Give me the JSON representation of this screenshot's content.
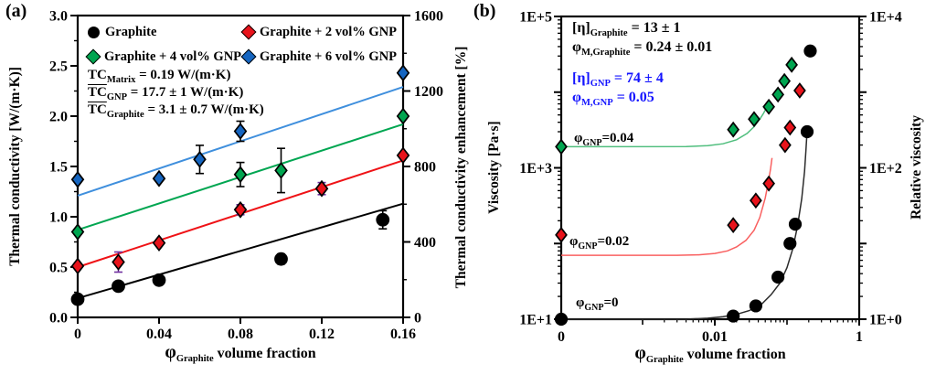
{
  "page": {
    "panel_a_label": "(a)",
    "panel_b_label": "(b)"
  },
  "chart_data": [
    {
      "type": "scatter",
      "panel": "a",
      "axes": {
        "x": {
          "label_phi": "φ",
          "label_sub": "Graphite",
          "label_rest": " volume fraction",
          "min": 0,
          "max": 0.16,
          "ticks": [
            {
              "v": 0,
              "t": "0"
            },
            {
              "v": 0.04,
              "t": "0.04"
            },
            {
              "v": 0.08,
              "t": "0.08"
            },
            {
              "v": 0.12,
              "t": "0.12"
            },
            {
              "v": 0.16,
              "t": "0.16"
            }
          ]
        },
        "y_left": {
          "label": "Thermal conductivity [W/(m·K)]",
          "min": 0,
          "max": 3.0,
          "major": 0.5,
          "minor": 0.25,
          "tick_labels": [
            "0.0",
            "0.5",
            "1.0",
            "1.5",
            "2.0",
            "2.5",
            "3.0"
          ]
        },
        "y_right": {
          "label": "Thermal conductivity enhancement [%]",
          "min": 0,
          "max": 1600,
          "major": 400,
          "minor": 200,
          "tick_labels": [
            "0",
            "400",
            "800",
            "1200",
            "1600"
          ]
        }
      },
      "annotations": [
        {
          "pre": "TC",
          "sub": "Matrix",
          "rest": " = 0.19 W/(m·K)",
          "overline": false,
          "color": "#000000"
        },
        {
          "pre": "TC",
          "sub": "GNP",
          "rest": " = 17.7 ± 1 W/(m·K)",
          "overline": true,
          "color": "#000000"
        },
        {
          "pre": "TC",
          "sub": "Graphite",
          "rest": " = 3.1 ± 0.7 W/(m·K)",
          "overline": true,
          "color": "#000000"
        }
      ],
      "series": [
        {
          "name": "Graphite",
          "marker": "circle",
          "color": "#000000",
          "err_color": "#000000",
          "line_color": "#000000",
          "points": [
            {
              "x": 0,
              "y": 0.18
            },
            {
              "x": 0.02,
              "y": 0.31
            },
            {
              "x": 0.04,
              "y": 0.37
            },
            {
              "x": 0.1,
              "y": 0.58,
              "err": 0.05
            },
            {
              "x": 0.15,
              "y": 0.97,
              "err": 0.09
            }
          ],
          "fit_line": {
            "x0": 0,
            "y0": 0.19,
            "x1": 0.16,
            "y1": 1.13
          }
        },
        {
          "name": "Graphite + 2 vol% GNP",
          "marker": "diamond",
          "color": "#e8131b",
          "err_color": "#7030a0",
          "line_color": "#ef1216",
          "points": [
            {
              "x": 0,
              "y": 0.51
            },
            {
              "x": 0.02,
              "y": 0.55,
              "err": 0.1
            },
            {
              "x": 0.04,
              "y": 0.74
            },
            {
              "x": 0.08,
              "y": 1.07,
              "err": 0.05
            },
            {
              "x": 0.12,
              "y": 1.28,
              "err": 0.06
            },
            {
              "x": 0.16,
              "y": 1.61
            }
          ],
          "fit_line": {
            "x0": 0,
            "y0": 0.5,
            "x1": 0.16,
            "y1": 1.56
          }
        },
        {
          "name": "Graphite + 4 vol% GNP",
          "marker": "diamond",
          "color": "#00a550",
          "err_color": "#000000",
          "line_color": "#00a651",
          "points": [
            {
              "x": 0,
              "y": 0.85
            },
            {
              "x": 0.08,
              "y": 1.42,
              "err": 0.12
            },
            {
              "x": 0.1,
              "y": 1.46,
              "err": 0.22
            },
            {
              "x": 0.16,
              "y": 2.0
            }
          ],
          "fit_line": {
            "x0": 0,
            "y0": 0.87,
            "x1": 0.16,
            "y1": 1.92
          }
        },
        {
          "name": "Graphite + 6 vol% GNP",
          "marker": "diamond",
          "color": "#1565c0",
          "err_color": "#000000",
          "line_color": "#3f8fdd",
          "points": [
            {
              "x": 0,
              "y": 1.37
            },
            {
              "x": 0.04,
              "y": 1.38
            },
            {
              "x": 0.06,
              "y": 1.57,
              "err": 0.14
            },
            {
              "x": 0.08,
              "y": 1.85,
              "err": 0.1
            },
            {
              "x": 0.16,
              "y": 2.43
            }
          ],
          "fit_line": {
            "x0": 0,
            "y0": 1.21,
            "x1": 0.16,
            "y1": 2.29
          }
        }
      ]
    },
    {
      "type": "scatter",
      "panel": "b",
      "axes": {
        "x": {
          "label_phi": "φ",
          "label_sub": "Graphite",
          "label_rest": " volume fraction",
          "scale": "pseudo-log",
          "ticks": [
            {
              "v": 0,
              "t": "0"
            },
            {
              "v": 0.01,
              "t": "0.01"
            },
            {
              "v": 1,
              "t": "1"
            }
          ]
        },
        "y_left": {
          "label": "Viscosity [Pa·s]",
          "scale": "log",
          "min_exp": 1,
          "max_exp": 5,
          "tick_labels": [
            "1E+1",
            "1E+3",
            "1E+5"
          ],
          "label_exps": [
            1,
            3,
            5
          ]
        },
        "y_right": {
          "label": "Relative viscosity",
          "scale": "log",
          "min_exp": 0,
          "max_exp": 4,
          "tick_labels": [
            "1E+0",
            "1E+2",
            "1E+4"
          ],
          "label_exps": [
            1,
            3,
            5
          ]
        }
      },
      "annotations": [
        {
          "pre": "[η]",
          "sub": "Graphite",
          "rest": " = 13 ± 1",
          "color": "#000000"
        },
        {
          "pre": "φ",
          "sub": "M,Graphite",
          "rest": " = 0.24 ±  0.01",
          "color": "#000000"
        },
        {
          "pre": "[η]",
          "sub": "GNP",
          "rest": " = 74 ± 4",
          "color": "#1414ff"
        },
        {
          "pre": "φ",
          "sub": "M,GNP",
          "rest": " = 0.05",
          "color": "#1414ff"
        }
      ],
      "curve_labels": [
        {
          "pre": "φ",
          "sub": "GNP",
          "rest": "=0.04"
        },
        {
          "pre": "φ",
          "sub": "GNP",
          "rest": "=0.02"
        },
        {
          "pre": "φ",
          "sub": "GNP",
          "rest": "=0"
        }
      ],
      "series": [
        {
          "name": "phi_GNP = 0.04",
          "marker": "diamond",
          "color": "#00a550",
          "curve_color": "#4fbe7d",
          "points": [
            {
              "x": 0,
              "y": 1900
            },
            {
              "x": 0.018,
              "y": 3200
            },
            {
              "x": 0.035,
              "y": 4400
            },
            {
              "x": 0.056,
              "y": 6400
            },
            {
              "x": 0.075,
              "y": 9300
            },
            {
              "x": 0.092,
              "y": 14000
            },
            {
              "x": 0.116,
              "y": 23000
            }
          ],
          "curve": [
            [
              0,
              1900
            ],
            [
              0.004,
              1910
            ],
            [
              0.008,
              1960
            ],
            [
              0.013,
              2080
            ],
            [
              0.02,
              2350
            ],
            [
              0.028,
              2850
            ],
            [
              0.035,
              3500
            ],
            [
              0.042,
              4400
            ],
            [
              0.047,
              5200
            ],
            [
              0.05,
              5800
            ]
          ]
        },
        {
          "name": "phi_GNP = 0.02",
          "marker": "diamond",
          "color": "#e8131b",
          "curve_color": "#f96060",
          "points": [
            {
              "x": 0,
              "y": 130
            },
            {
              "x": 0.018,
              "y": 175
            },
            {
              "x": 0.037,
              "y": 370
            },
            {
              "x": 0.056,
              "y": 620
            },
            {
              "x": 0.094,
              "y": 2000
            },
            {
              "x": 0.11,
              "y": 3400
            },
            {
              "x": 0.15,
              "y": 10500
            }
          ],
          "curve": [
            [
              0,
              70
            ],
            [
              0.003,
              70
            ],
            [
              0.006,
              71
            ],
            [
              0.01,
              74
            ],
            [
              0.015,
              80
            ],
            [
              0.02,
              90
            ],
            [
              0.027,
              110
            ],
            [
              0.035,
              150
            ],
            [
              0.042,
              220
            ],
            [
              0.05,
              400
            ],
            [
              0.055,
              640
            ],
            [
              0.059,
              950
            ],
            [
              0.062,
              1350
            ]
          ]
        },
        {
          "name": "phi_GNP = 0",
          "marker": "circle",
          "color": "#000000",
          "curve_color": "#2b2b2b",
          "points": [
            {
              "x": 0,
              "y": 10
            },
            {
              "x": 0.018,
              "y": 11
            },
            {
              "x": 0.037,
              "y": 15
            },
            {
              "x": 0.075,
              "y": 36
            },
            {
              "x": 0.11,
              "y": 100
            },
            {
              "x": 0.13,
              "y": 180
            },
            {
              "x": 0.19,
              "y": 3000
            },
            {
              "x": 0.21,
              "y": 35000
            }
          ],
          "curve": [
            [
              0,
              10
            ],
            [
              0.004,
              10
            ],
            [
              0.008,
              10.3
            ],
            [
              0.013,
              10.8
            ],
            [
              0.02,
              11.6
            ],
            [
              0.03,
              13
            ],
            [
              0.045,
              16
            ],
            [
              0.06,
              21
            ],
            [
              0.08,
              30
            ],
            [
              0.1,
              48
            ],
            [
              0.12,
              85
            ],
            [
              0.14,
              170
            ],
            [
              0.16,
              390
            ],
            [
              0.175,
              900
            ],
            [
              0.183,
              1700
            ],
            [
              0.19,
              3100
            ]
          ]
        }
      ]
    }
  ]
}
